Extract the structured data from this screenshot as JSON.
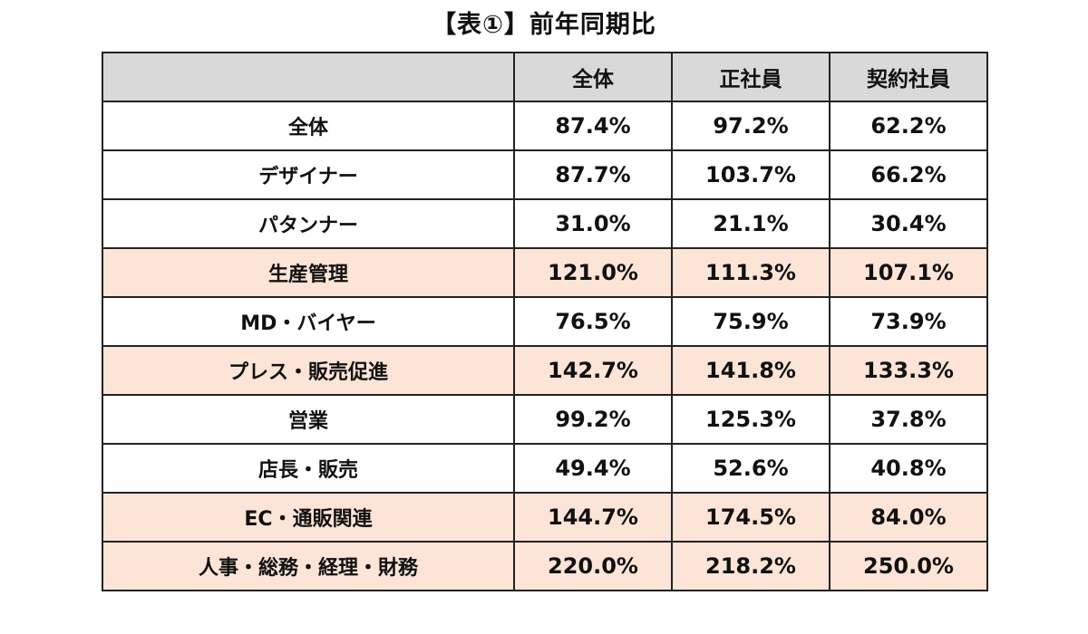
{
  "title": "【表①】前年同期比",
  "chart_data": {
    "type": "table",
    "title": "【表①】前年同期比",
    "columns": [
      "",
      "全体",
      "正社員",
      "契約社員"
    ],
    "rows": [
      {
        "label": "全体",
        "values": [
          "87.4%",
          "97.2%",
          "62.2%"
        ],
        "highlight": false
      },
      {
        "label": "デザイナー",
        "values": [
          "87.7%",
          "103.7%",
          "66.2%"
        ],
        "highlight": false
      },
      {
        "label": "パタンナー",
        "values": [
          "31.0%",
          "21.1%",
          "30.4%"
        ],
        "highlight": false
      },
      {
        "label": "生産管理",
        "values": [
          "121.0%",
          "111.3%",
          "107.1%"
        ],
        "highlight": true
      },
      {
        "label": "MD・バイヤー",
        "values": [
          "76.5%",
          "75.9%",
          "73.9%"
        ],
        "highlight": false
      },
      {
        "label": "プレス・販売促進",
        "values": [
          "142.7%",
          "141.8%",
          "133.3%"
        ],
        "highlight": true
      },
      {
        "label": "営業",
        "values": [
          "99.2%",
          "125.3%",
          "37.8%"
        ],
        "highlight": false
      },
      {
        "label": "店長・販売",
        "values": [
          "49.4%",
          "52.6%",
          "40.8%"
        ],
        "highlight": false
      },
      {
        "label": "EC・通販関連",
        "values": [
          "144.7%",
          "174.5%",
          "84.0%"
        ],
        "highlight": true
      },
      {
        "label": "人事・総務・経理・財務",
        "values": [
          "220.0%",
          "218.2%",
          "250.0%"
        ],
        "highlight": true
      }
    ],
    "colors": {
      "header_bg": "#d9d9d9",
      "highlight_bg": "#fce4d6",
      "border": "#222222"
    }
  }
}
